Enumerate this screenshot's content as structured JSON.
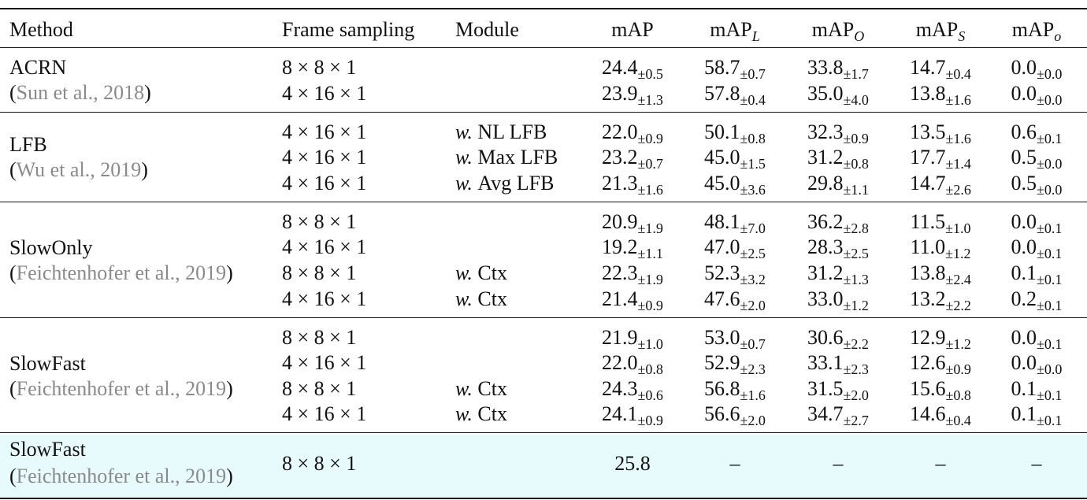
{
  "table": {
    "header": {
      "method": "Method",
      "frame": "Frame sampling",
      "module": "Module",
      "metrics": [
        {
          "base": "mAP"
        },
        {
          "base": "mAP",
          "sub": "L"
        },
        {
          "base": "mAP",
          "sub": "O"
        },
        {
          "base": "mAP",
          "sub": "S"
        },
        {
          "base": "mAP",
          "sub": "o"
        }
      ]
    },
    "groups": [
      {
        "method": "ACRN",
        "cite": [
          "(",
          "Sun et al., ",
          "2018",
          ")"
        ],
        "rows": [
          {
            "frame": "8 × 8 × 1",
            "cells": [
              [
                "24.4",
                "±0.5"
              ],
              [
                "58.7",
                "±0.7"
              ],
              [
                "33.8",
                "±1.7"
              ],
              [
                "14.7",
                "±0.4"
              ],
              [
                "0.0",
                "±0.0"
              ]
            ]
          },
          {
            "frame": "4 × 16 × 1",
            "cells": [
              [
                "23.9",
                "±1.3"
              ],
              [
                "57.8",
                "±0.4"
              ],
              [
                "35.0",
                "±4.0"
              ],
              [
                "13.8",
                "±1.6"
              ],
              [
                "0.0",
                "±0.0"
              ]
            ]
          }
        ]
      },
      {
        "method": "LFB",
        "cite": [
          "(",
          "Wu et al., ",
          "2019",
          ")"
        ],
        "rows": [
          {
            "frame": "4 × 16 × 1",
            "module": {
              "w": "w.",
              "name": "NL LFB"
            },
            "cells": [
              [
                "22.0",
                "±0.9"
              ],
              [
                "50.1",
                "±0.8"
              ],
              [
                "32.3",
                "±0.9"
              ],
              [
                "13.5",
                "±1.6"
              ],
              [
                "0.6",
                "±0.1"
              ]
            ]
          },
          {
            "frame": "4 × 16 × 1",
            "module": {
              "w": "w.",
              "name": "Max LFB"
            },
            "cells": [
              [
                "23.2",
                "±0.7"
              ],
              [
                "45.0",
                "±1.5"
              ],
              [
                "31.2",
                "±0.8"
              ],
              [
                "17.7",
                "±1.4"
              ],
              [
                "0.5",
                "±0.0"
              ]
            ]
          },
          {
            "frame": "4 × 16 × 1",
            "module": {
              "w": "w.",
              "name": "Avg LFB"
            },
            "cells": [
              [
                "21.3",
                "±1.6"
              ],
              [
                "45.0",
                "±3.6"
              ],
              [
                "29.8",
                "±1.1"
              ],
              [
                "14.7",
                "±2.6"
              ],
              [
                "0.5",
                "±0.0"
              ]
            ]
          }
        ]
      },
      {
        "method": "SlowOnly",
        "cite": [
          "(",
          "Feichtenhofer et al., ",
          "2019",
          ")"
        ],
        "rows": [
          {
            "frame": "8 × 8 × 1",
            "cells": [
              [
                "20.9",
                "±1.9"
              ],
              [
                "48.1",
                "±7.0"
              ],
              [
                "36.2",
                "±2.8"
              ],
              [
                "11.5",
                "±1.0"
              ],
              [
                "0.0",
                "±0.1"
              ]
            ]
          },
          {
            "frame": "4 × 16 × 1",
            "cells": [
              [
                "19.2",
                "±1.1"
              ],
              [
                "47.0",
                "±2.5"
              ],
              [
                "28.3",
                "±2.5"
              ],
              [
                "11.0",
                "±1.2"
              ],
              [
                "0.0",
                "±0.1"
              ]
            ]
          },
          {
            "frame": "8 × 8 × 1",
            "module": {
              "w": "w.",
              "name": "Ctx"
            },
            "cells": [
              [
                "22.3",
                "±1.9"
              ],
              [
                "52.3",
                "±3.2"
              ],
              [
                "31.2",
                "±1.3"
              ],
              [
                "13.8",
                "±2.4"
              ],
              [
                "0.1",
                "±0.1"
              ]
            ]
          },
          {
            "frame": "4 × 16 × 1",
            "module": {
              "w": "w.",
              "name": "Ctx"
            },
            "cells": [
              [
                "21.4",
                "±0.9"
              ],
              [
                "47.6",
                "±2.0"
              ],
              [
                "33.0",
                "±1.2"
              ],
              [
                "13.2",
                "±2.2"
              ],
              [
                "0.2",
                "±0.1"
              ]
            ]
          }
        ]
      },
      {
        "method": "SlowFast",
        "cite": [
          "(",
          "Feichtenhofer et al., ",
          "2019",
          ")"
        ],
        "rows": [
          {
            "frame": "8 × 8 × 1",
            "cells": [
              [
                "21.9",
                "±1.0"
              ],
              [
                "53.0",
                "±0.7"
              ],
              [
                "30.6",
                "±2.2"
              ],
              [
                "12.9",
                "±1.2"
              ],
              [
                "0.0",
                "±0.1"
              ]
            ]
          },
          {
            "frame": "4 × 16 × 1",
            "cells": [
              [
                "22.0",
                "±0.8"
              ],
              [
                "52.9",
                "±2.3"
              ],
              [
                "33.1",
                "±2.3"
              ],
              [
                "12.6",
                "±0.9"
              ],
              [
                "0.0",
                "±0.0"
              ]
            ]
          },
          {
            "frame": "8 × 8 × 1",
            "module": {
              "w": "w.",
              "name": "Ctx"
            },
            "cells": [
              [
                "24.3",
                "±0.6"
              ],
              [
                "56.8",
                "±1.6"
              ],
              [
                "31.5",
                "±2.0"
              ],
              [
                "15.6",
                "±0.8"
              ],
              [
                "0.1",
                "±0.1"
              ]
            ]
          },
          {
            "frame": "4 × 16 × 1",
            "module": {
              "w": "w.",
              "name": "Ctx"
            },
            "cells": [
              [
                "24.1",
                "±0.9"
              ],
              [
                "56.6",
                "±2.0"
              ],
              [
                "34.7",
                "±2.7"
              ],
              [
                "14.6",
                "±0.4"
              ],
              [
                "0.1",
                "±0.1"
              ]
            ]
          }
        ]
      },
      {
        "method": "SlowFast",
        "cite": [
          "(",
          "Feichtenhofer et al., ",
          "2019",
          ")"
        ],
        "highlight": true,
        "rows": [
          {
            "frame": "8 × 8 × 1",
            "cells": [
              [
                "25.8"
              ],
              [
                "–"
              ],
              [
                "–"
              ],
              [
                "–"
              ],
              [
                "–"
              ]
            ]
          }
        ]
      }
    ]
  }
}
